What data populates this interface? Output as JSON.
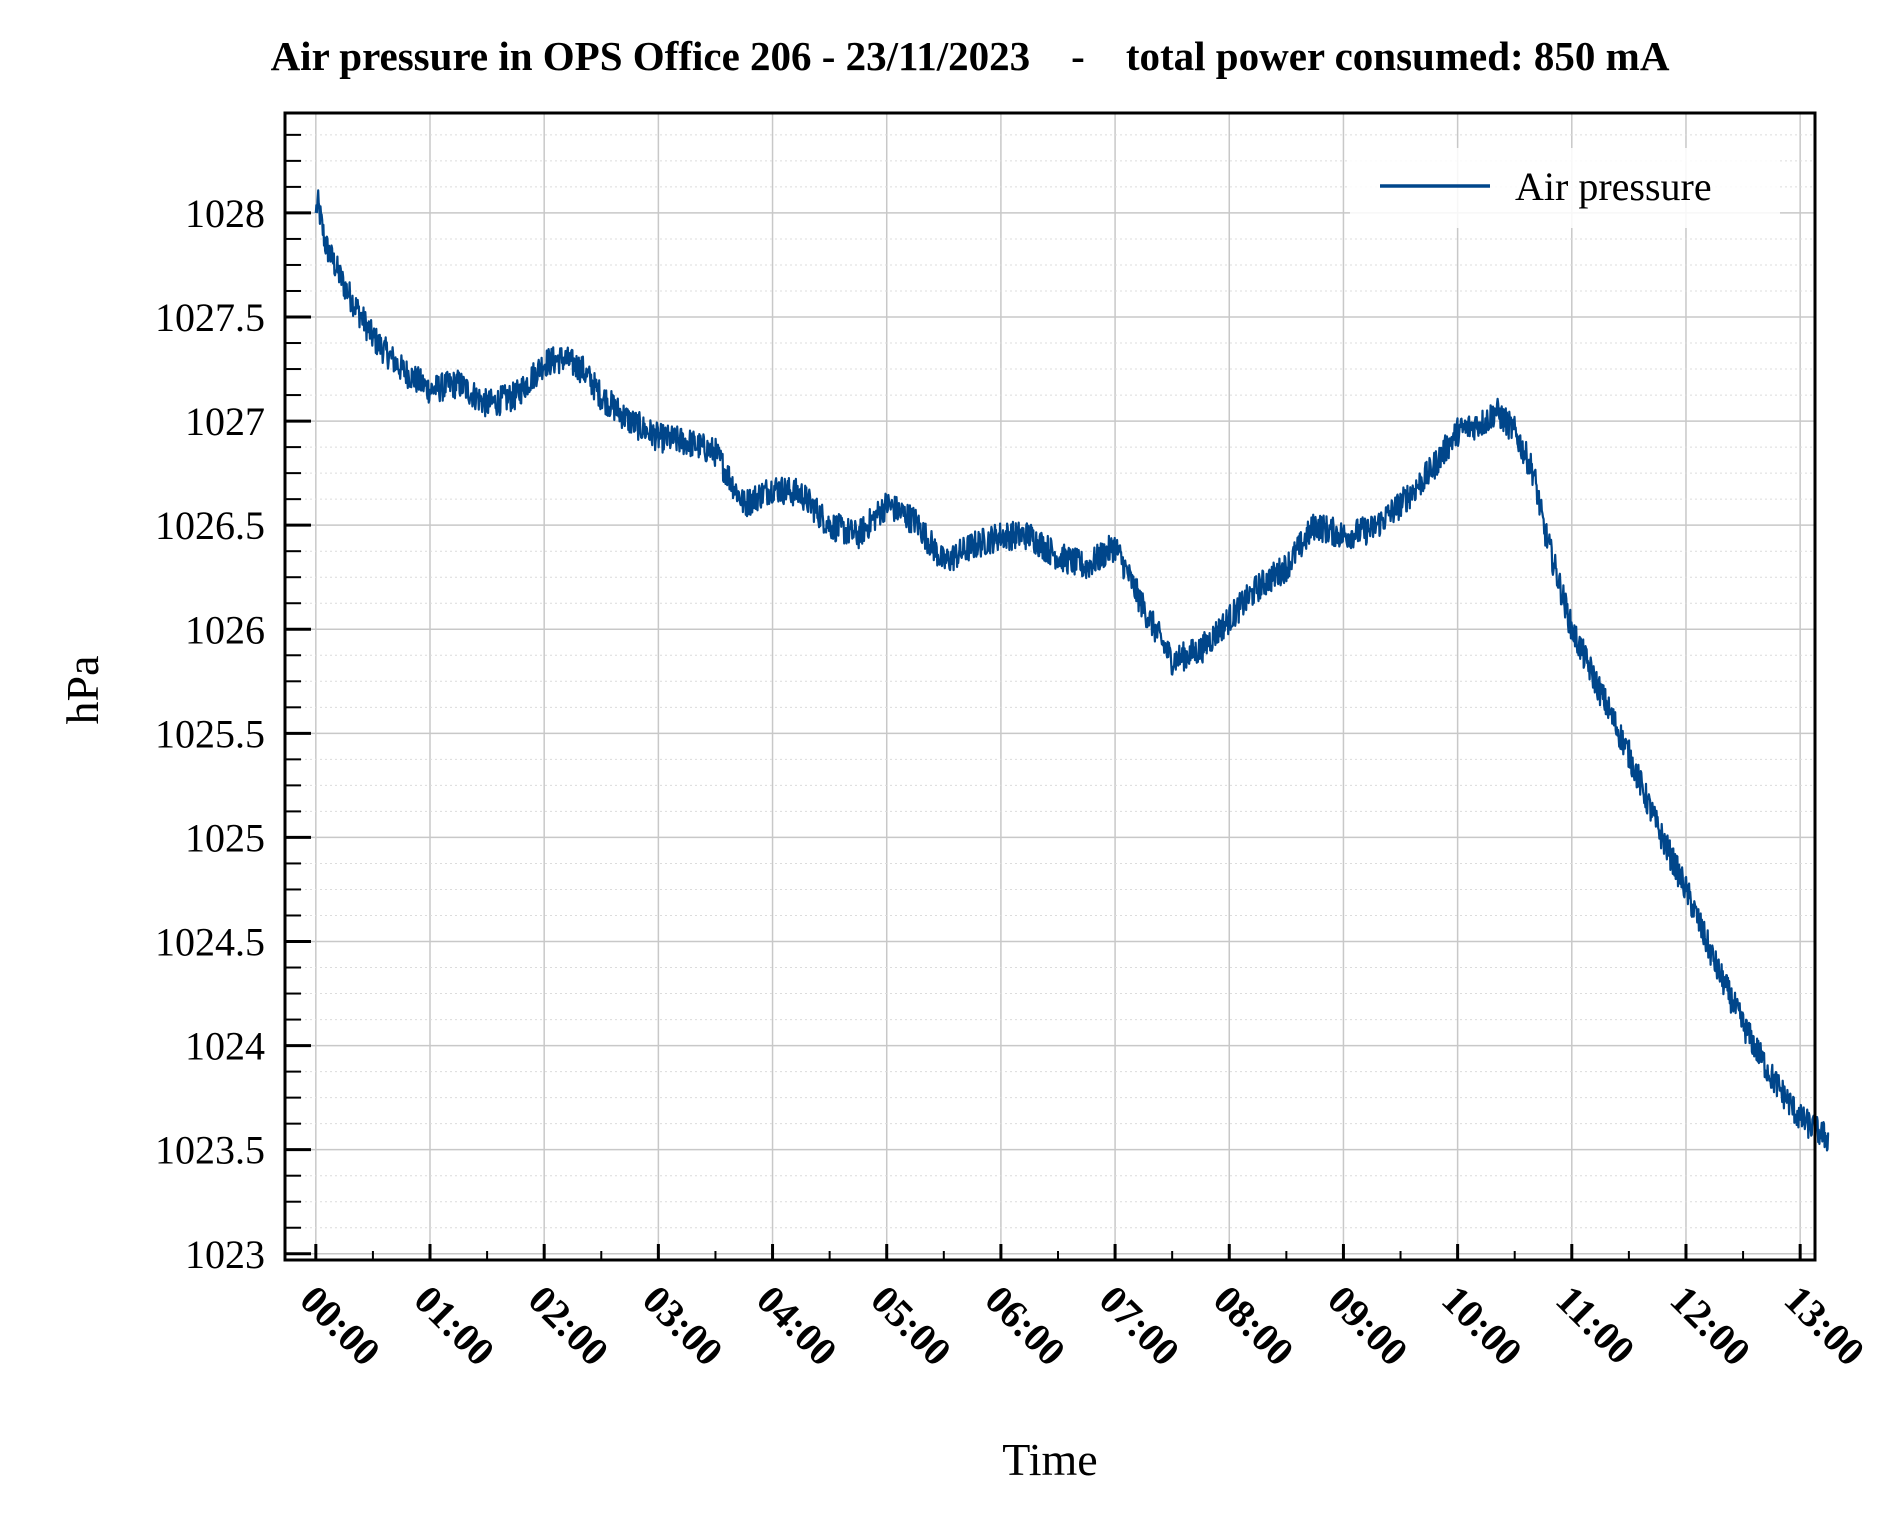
{
  "chart_data": {
    "type": "line",
    "title": "Air pressure in OPS Office 206 - 23/11/2023    -    total power consumed: 850 mA",
    "xlabel": "Time",
    "ylabel": "hPa",
    "legend": {
      "position": "top-right",
      "entries": [
        "Air pressure"
      ]
    },
    "grid": true,
    "line_color": "#00468b",
    "xlim_hours": [
      -0.27,
      13.13
    ],
    "ylim": [
      1022.97,
      1028.48
    ],
    "x_ticks": [
      "00:00",
      "01:00",
      "02:00",
      "03:00",
      "04:00",
      "05:00",
      "06:00",
      "07:00",
      "08:00",
      "09:00",
      "10:00",
      "11:00",
      "12:00",
      "13:00"
    ],
    "y_ticks": [
      "1023",
      "1023.5",
      "1024",
      "1024.5",
      "1025",
      "1025.5",
      "1026",
      "1026.5",
      "1027",
      "1027.5",
      "1028"
    ],
    "series": [
      {
        "name": "Air pressure",
        "noise_amplitude": 0.07,
        "x": [
          "00:00",
          "00:01",
          "00:05",
          "00:15",
          "00:30",
          "00:45",
          "01:00",
          "01:15",
          "01:30",
          "01:45",
          "02:00",
          "02:10",
          "02:20",
          "02:30",
          "02:45",
          "03:00",
          "03:15",
          "03:30",
          "03:45",
          "04:00",
          "04:15",
          "04:30",
          "04:45",
          "05:00",
          "05:15",
          "05:30",
          "05:45",
          "06:00",
          "06:15",
          "06:30",
          "06:45",
          "07:00",
          "07:15",
          "07:30",
          "07:45",
          "08:00",
          "08:15",
          "08:30",
          "08:45",
          "09:00",
          "09:15",
          "09:30",
          "09:45",
          "10:00",
          "10:15",
          "10:20",
          "10:30",
          "10:40",
          "10:45",
          "11:00",
          "11:15",
          "11:30",
          "11:45",
          "12:00",
          "12:15",
          "12:30",
          "12:45",
          "13:00",
          "13:15"
        ],
        "y": [
          1028.0,
          1028.05,
          1027.85,
          1027.65,
          1027.4,
          1027.25,
          1027.15,
          1027.18,
          1027.08,
          1027.12,
          1027.28,
          1027.3,
          1027.25,
          1027.12,
          1027.0,
          1026.92,
          1026.9,
          1026.85,
          1026.6,
          1026.68,
          1026.65,
          1026.5,
          1026.45,
          1026.6,
          1026.52,
          1026.32,
          1026.4,
          1026.45,
          1026.45,
          1026.35,
          1026.3,
          1026.4,
          1026.1,
          1025.85,
          1025.9,
          1026.05,
          1026.2,
          1026.3,
          1026.5,
          1026.45,
          1026.48,
          1026.6,
          1026.75,
          1026.95,
          1027.0,
          1027.05,
          1026.95,
          1026.75,
          1026.5,
          1026.0,
          1025.7,
          1025.4,
          1025.05,
          1024.75,
          1024.4,
          1024.1,
          1023.85,
          1023.65,
          1023.55
        ]
      }
    ]
  }
}
